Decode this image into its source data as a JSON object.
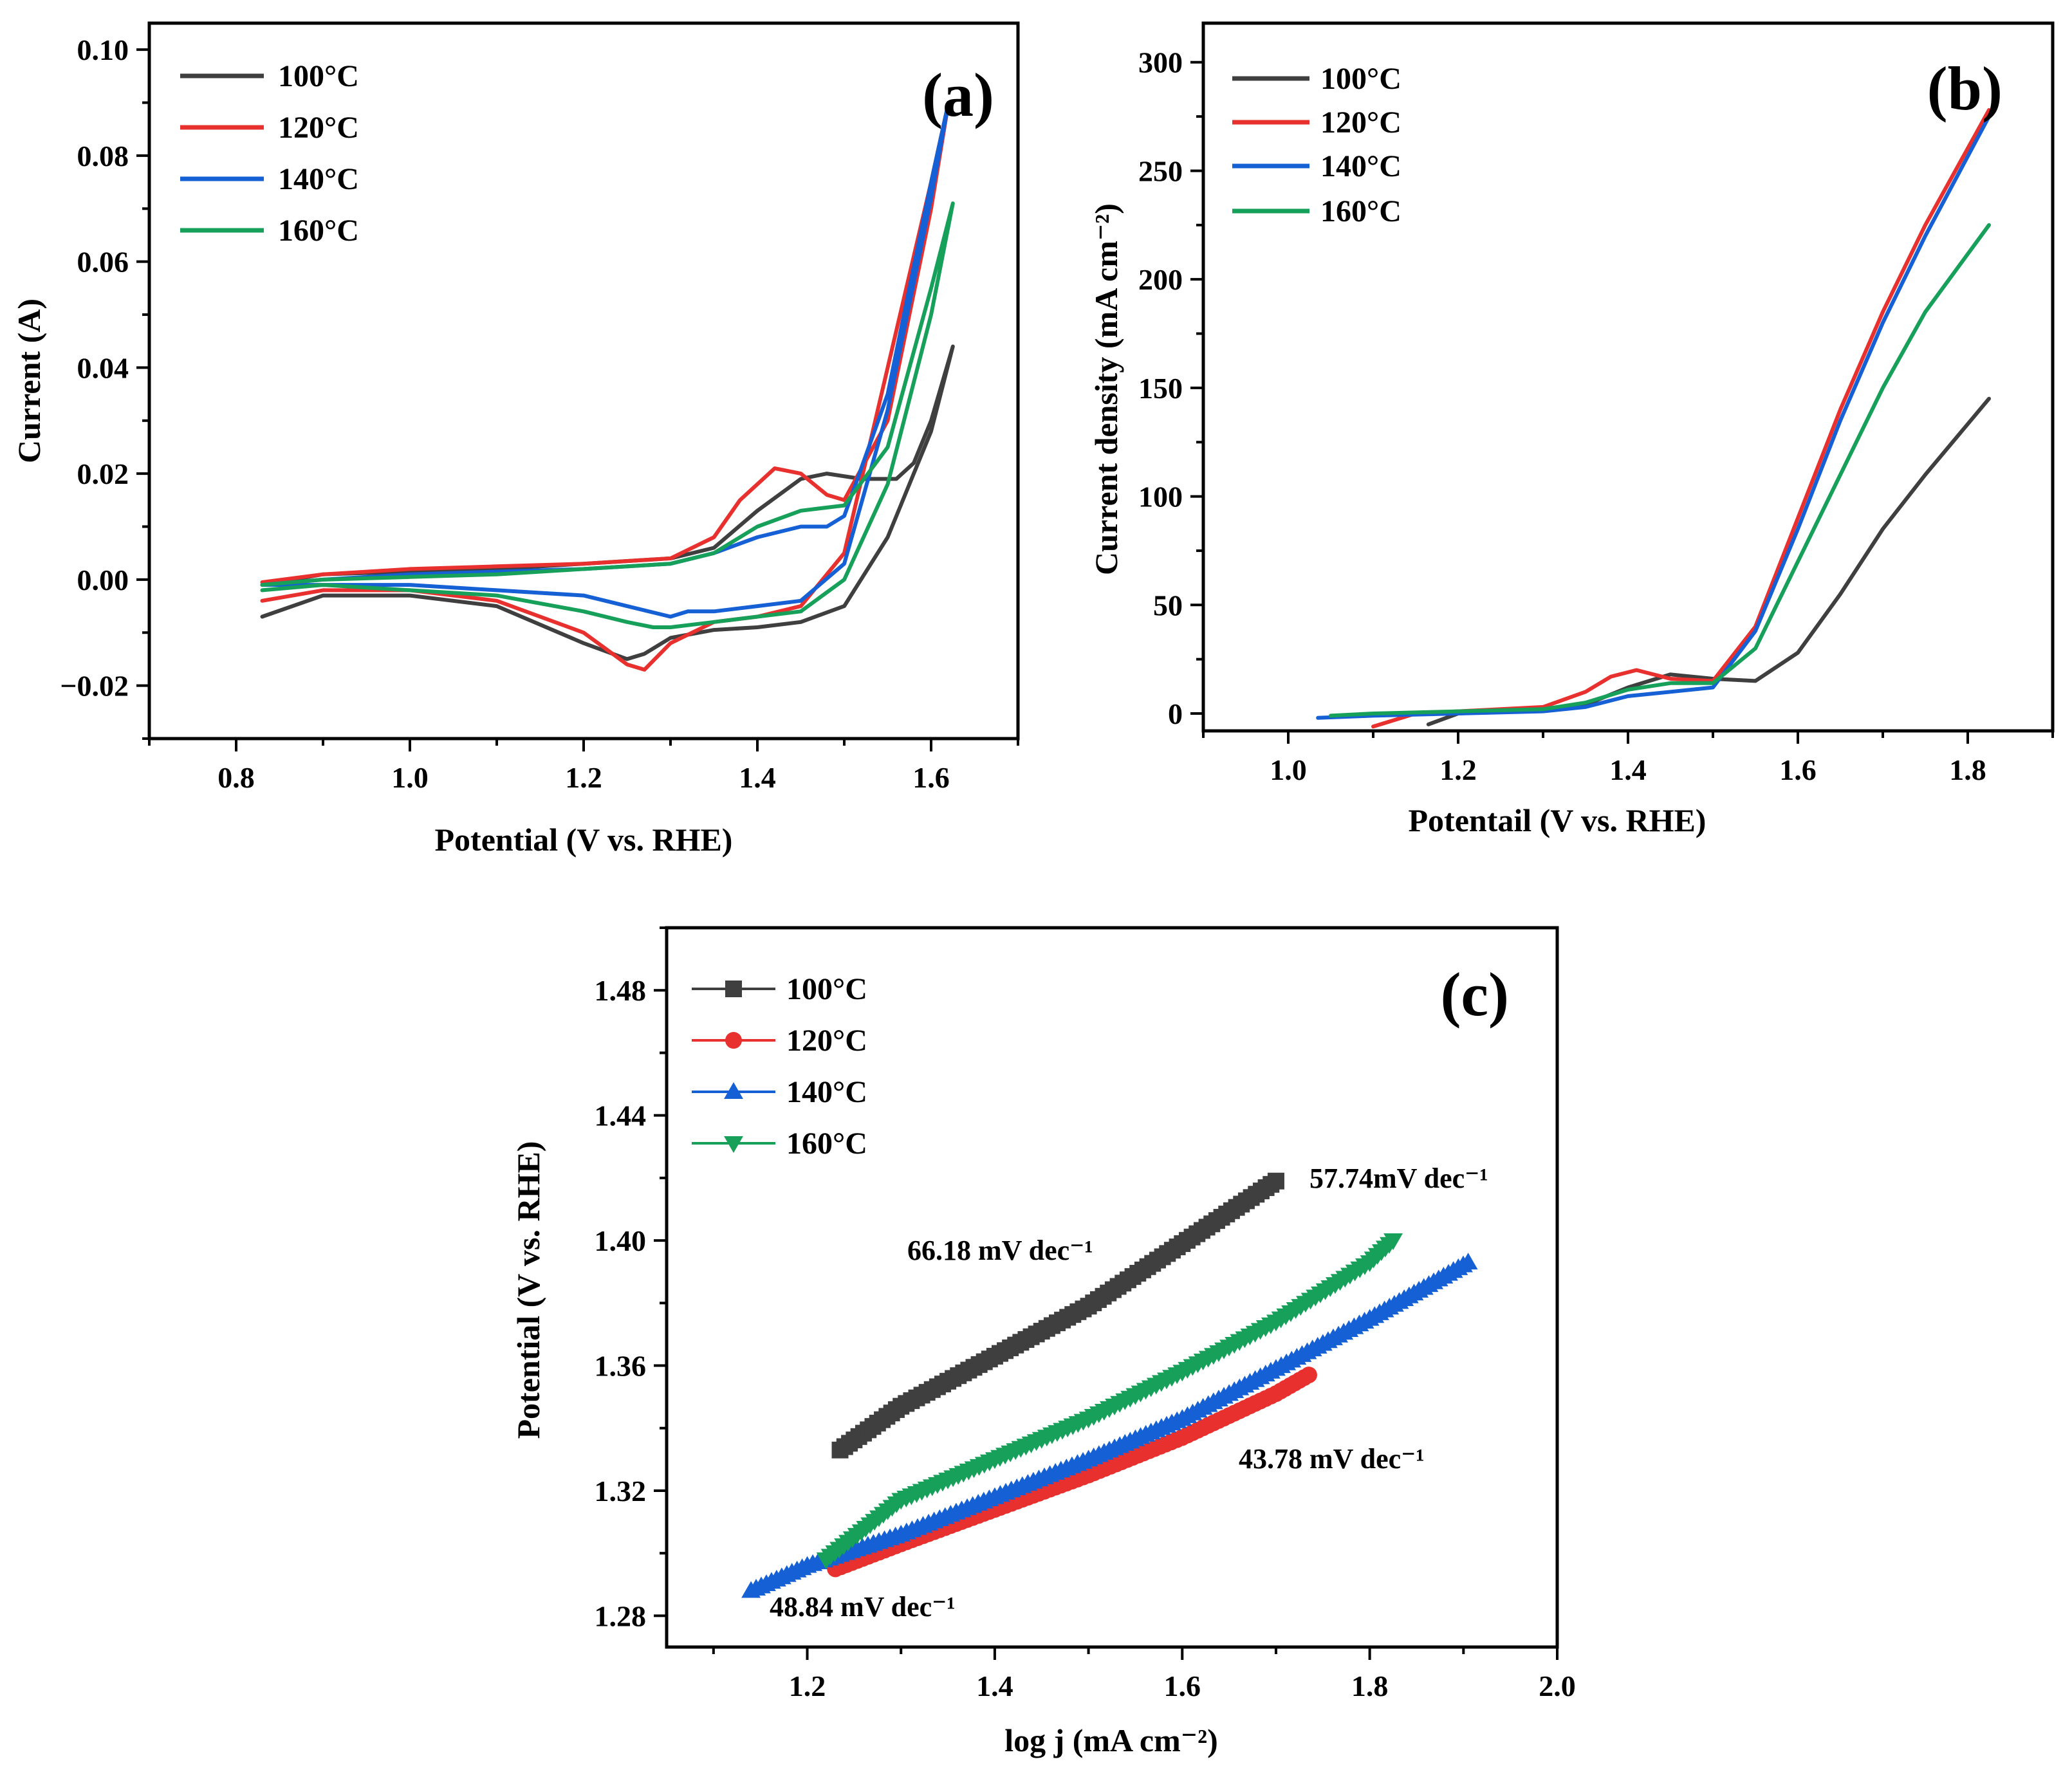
{
  "chart_data": [
    {
      "id": "a",
      "type": "line",
      "panel_label": "(a)",
      "xlabel": "Potential (V vs. RHE)",
      "ylabel": "Current (A)",
      "xlim": [
        0.7,
        1.7
      ],
      "ylim": [
        -0.03,
        0.105
      ],
      "xticks": [
        0.8,
        1.0,
        1.2,
        1.4,
        1.6
      ],
      "yticks": [
        -0.02,
        0.0,
        0.02,
        0.04,
        0.06,
        0.08,
        0.1
      ],
      "xtick_labels": [
        "0.8",
        "1.0",
        "1.2",
        "1.4",
        "1.6"
      ],
      "ytick_labels": [
        "−0.02",
        "0.00",
        "0.02",
        "0.04",
        "0.06",
        "0.08",
        "0.10"
      ],
      "legend_position": "top-left",
      "series": [
        {
          "name": "100°C",
          "color": "#3f3f3f",
          "x": [
            0.83,
            0.9,
            1.0,
            1.1,
            1.2,
            1.3,
            1.35,
            1.4,
            1.45,
            1.48,
            1.52,
            1.56,
            1.58,
            1.6,
            1.625,
            1.6,
            1.55,
            1.5,
            1.45,
            1.4,
            1.35,
            1.3,
            1.27,
            1.25,
            1.2,
            1.1,
            1.0,
            0.9,
            0.83
          ],
          "y": [
            -0.001,
            0.001,
            0.0015,
            0.002,
            0.003,
            0.004,
            0.006,
            0.013,
            0.019,
            0.02,
            0.019,
            0.019,
            0.022,
            0.03,
            0.044,
            0.028,
            0.008,
            -0.005,
            -0.008,
            -0.009,
            -0.0095,
            -0.011,
            -0.014,
            -0.015,
            -0.012,
            -0.005,
            -0.003,
            -0.003,
            -0.007
          ]
        },
        {
          "name": "120°C",
          "color": "#e8312e",
          "x": [
            0.83,
            0.9,
            1.0,
            1.1,
            1.2,
            1.3,
            1.35,
            1.38,
            1.42,
            1.45,
            1.48,
            1.5,
            1.55,
            1.6,
            1.62,
            1.6,
            1.55,
            1.5,
            1.45,
            1.4,
            1.35,
            1.3,
            1.27,
            1.25,
            1.2,
            1.1,
            1.0,
            0.9,
            0.83
          ],
          "y": [
            -0.0005,
            0.001,
            0.002,
            0.0025,
            0.003,
            0.004,
            0.008,
            0.015,
            0.021,
            0.02,
            0.016,
            0.015,
            0.03,
            0.07,
            0.09,
            0.075,
            0.04,
            0.005,
            -0.005,
            -0.007,
            -0.008,
            -0.012,
            -0.017,
            -0.016,
            -0.01,
            -0.004,
            -0.002,
            -0.002,
            -0.004
          ]
        },
        {
          "name": "140°C",
          "color": "#1560d4",
          "x": [
            0.83,
            0.9,
            1.0,
            1.1,
            1.2,
            1.3,
            1.35,
            1.4,
            1.45,
            1.48,
            1.5,
            1.55,
            1.6,
            1.62,
            1.6,
            1.55,
            1.5,
            1.45,
            1.4,
            1.35,
            1.32,
            1.3,
            1.25,
            1.2,
            1.1,
            1.0,
            0.9,
            0.83
          ],
          "y": [
            -0.001,
            0.0,
            0.001,
            0.0015,
            0.002,
            0.003,
            0.005,
            0.008,
            0.01,
            0.01,
            0.012,
            0.035,
            0.075,
            0.09,
            0.072,
            0.032,
            0.003,
            -0.004,
            -0.005,
            -0.006,
            -0.006,
            -0.007,
            -0.005,
            -0.003,
            -0.002,
            -0.001,
            -0.001,
            -0.001
          ]
        },
        {
          "name": "160°C",
          "color": "#17a05a",
          "x": [
            0.83,
            0.9,
            1.0,
            1.1,
            1.2,
            1.3,
            1.35,
            1.4,
            1.45,
            1.5,
            1.55,
            1.6,
            1.625,
            1.6,
            1.55,
            1.5,
            1.45,
            1.4,
            1.35,
            1.3,
            1.28,
            1.25,
            1.2,
            1.1,
            1.0,
            0.9,
            0.83
          ],
          "y": [
            -0.001,
            0.0,
            0.0005,
            0.001,
            0.002,
            0.003,
            0.005,
            0.01,
            0.013,
            0.014,
            0.025,
            0.055,
            0.071,
            0.05,
            0.018,
            0.0,
            -0.006,
            -0.007,
            -0.008,
            -0.009,
            -0.009,
            -0.008,
            -0.006,
            -0.003,
            -0.002,
            -0.001,
            -0.002
          ]
        }
      ]
    },
    {
      "id": "b",
      "type": "line",
      "panel_label": "(b)",
      "xlabel": "Potentail (V vs. RHE)",
      "ylabel": "Current density (mA cm⁻²)",
      "xlim": [
        0.9,
        1.9
      ],
      "ylim": [
        -8,
        318
      ],
      "xticks": [
        1.0,
        1.2,
        1.4,
        1.6,
        1.8
      ],
      "yticks": [
        0,
        50,
        100,
        150,
        200,
        250,
        300
      ],
      "xtick_labels": [
        "1.0",
        "1.2",
        "1.4",
        "1.6",
        "1.8"
      ],
      "ytick_labels": [
        "0",
        "50",
        "100",
        "150",
        "200",
        "250",
        "300"
      ],
      "legend_position": "top-left",
      "series": [
        {
          "name": "100°C",
          "color": "#3f3f3f",
          "x": [
            1.165,
            1.2,
            1.3,
            1.35,
            1.4,
            1.45,
            1.5,
            1.55,
            1.6,
            1.65,
            1.7,
            1.75,
            1.825
          ],
          "y": [
            -5,
            0,
            2,
            4,
            12,
            18,
            16,
            15,
            28,
            55,
            85,
            110,
            145
          ]
        },
        {
          "name": "120°C",
          "color": "#e8312e",
          "x": [
            1.1,
            1.15,
            1.2,
            1.3,
            1.35,
            1.38,
            1.41,
            1.45,
            1.5,
            1.55,
            1.6,
            1.65,
            1.7,
            1.75,
            1.825
          ],
          "y": [
            -6,
            0,
            1,
            3,
            10,
            17,
            20,
            16,
            15,
            40,
            90,
            140,
            185,
            225,
            278
          ]
        },
        {
          "name": "140°C",
          "color": "#1560d4",
          "x": [
            1.035,
            1.1,
            1.2,
            1.3,
            1.35,
            1.4,
            1.45,
            1.5,
            1.55,
            1.6,
            1.65,
            1.7,
            1.75,
            1.825
          ],
          "y": [
            -2,
            -1,
            0,
            1,
            3,
            8,
            10,
            12,
            38,
            85,
            135,
            180,
            220,
            275
          ]
        },
        {
          "name": "160°C",
          "color": "#17a05a",
          "x": [
            1.05,
            1.1,
            1.2,
            1.3,
            1.35,
            1.4,
            1.45,
            1.5,
            1.55,
            1.6,
            1.65,
            1.7,
            1.75,
            1.825
          ],
          "y": [
            -1,
            0,
            1,
            2,
            5,
            11,
            14,
            14,
            30,
            70,
            110,
            150,
            185,
            225
          ]
        }
      ]
    },
    {
      "id": "c",
      "type": "scatter",
      "panel_label": "(c)",
      "xlabel": "log j (mA cm⁻²)",
      "ylabel": "Potential (V vs. RHE)",
      "xlim": [
        1.05,
        2.0
      ],
      "ylim": [
        1.27,
        1.5
      ],
      "xticks": [
        1.2,
        1.4,
        1.6,
        1.8,
        2.0
      ],
      "yticks": [
        1.28,
        1.32,
        1.36,
        1.4,
        1.44,
        1.48
      ],
      "xtick_labels": [
        "1.2",
        "1.4",
        "1.6",
        "1.8",
        "2.0"
      ],
      "ytick_labels": [
        "1.28",
        "1.32",
        "1.36",
        "1.40",
        "1.44",
        "1.48"
      ],
      "legend_position": "top-left",
      "series": [
        {
          "name": "100°C",
          "color": "#3f3f3f",
          "marker": "square",
          "x": [
            1.235,
            1.3,
            1.4,
            1.5,
            1.6,
            1.7
          ],
          "y": [
            1.333,
            1.347,
            1.363,
            1.379,
            1.399,
            1.419
          ]
        },
        {
          "name": "120°C",
          "color": "#e8312e",
          "marker": "circle",
          "x": [
            1.23,
            1.3,
            1.4,
            1.5,
            1.6,
            1.7,
            1.735
          ],
          "y": [
            1.295,
            1.303,
            1.314,
            1.325,
            1.337,
            1.351,
            1.357
          ]
        },
        {
          "name": "140°C",
          "color": "#1560d4",
          "marker": "triangle-up",
          "x": [
            1.14,
            1.2,
            1.3,
            1.4,
            1.5,
            1.6,
            1.7,
            1.8,
            1.905
          ],
          "y": [
            1.288,
            1.296,
            1.306,
            1.318,
            1.33,
            1.343,
            1.359,
            1.375,
            1.393
          ]
        },
        {
          "name": "160°C",
          "color": "#17a05a",
          "marker": "triangle-down",
          "x": [
            1.22,
            1.3,
            1.4,
            1.5,
            1.6,
            1.7,
            1.8,
            1.825
          ],
          "y": [
            1.298,
            1.317,
            1.33,
            1.343,
            1.358,
            1.374,
            1.393,
            1.4
          ]
        }
      ],
      "annotations": [
        "66.18 mV dec⁻¹",
        "57.74mV dec⁻¹",
        "43.78 mV dec⁻¹",
        "48.84 mV dec⁻¹"
      ]
    }
  ]
}
